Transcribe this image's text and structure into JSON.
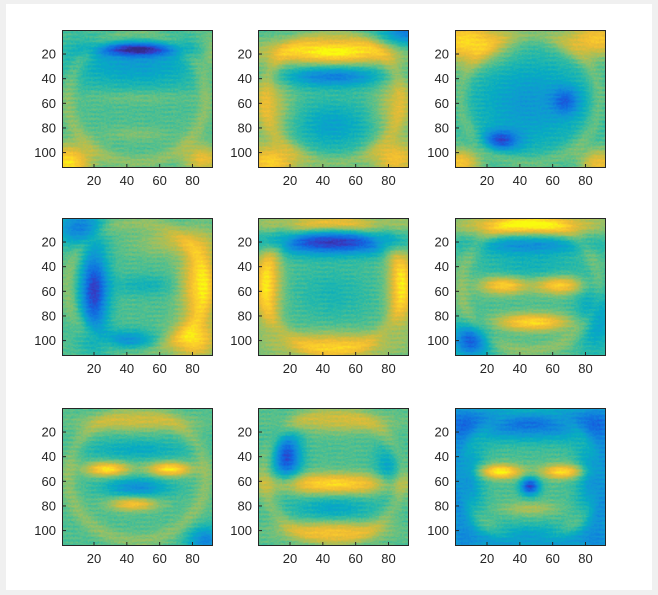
{
  "figure": {
    "background": "#f0f0f0",
    "canvas_color": "#ffffff"
  },
  "chart_data": [
    {
      "type": "heatmap",
      "panel": 1,
      "colormap": "parula",
      "xticks": [
        20,
        40,
        60,
        80
      ],
      "yticks": [
        20,
        40,
        60,
        80,
        100
      ],
      "xlim": [
        0.5,
        92.5
      ],
      "ylim": [
        0.5,
        112.5
      ],
      "y_direction": "reverse",
      "features": [
        {
          "x": 46,
          "y": 16,
          "sx": 18,
          "sy": 4,
          "v": -1.2
        },
        {
          "x": 46,
          "y": 28,
          "sx": 30,
          "sy": 14,
          "v": -0.55
        },
        {
          "x": 46,
          "y": 55,
          "sx": 22,
          "sy": 4,
          "v": 0.18
        },
        {
          "x": 46,
          "y": 85,
          "sx": 14,
          "sy": 4,
          "v": 0.2
        },
        {
          "x": 4,
          "y": 108,
          "sx": 10,
          "sy": 10,
          "v": 1.1
        },
        {
          "x": 86,
          "y": 105,
          "sx": 8,
          "sy": 8,
          "v": 0.75
        },
        {
          "x": 92,
          "y": 20,
          "sx": 6,
          "sy": 12,
          "v": 0.4
        }
      ]
    },
    {
      "type": "heatmap",
      "panel": 2,
      "colormap": "parula",
      "xticks": [
        20,
        40,
        60,
        80
      ],
      "yticks": [
        20,
        40,
        60,
        80,
        100
      ],
      "xlim": [
        0.5,
        92.5
      ],
      "ylim": [
        0.5,
        112.5
      ],
      "y_direction": "reverse",
      "features": [
        {
          "x": 46,
          "y": 18,
          "sx": 28,
          "sy": 7,
          "v": 1.25
        },
        {
          "x": 46,
          "y": 38,
          "sx": 22,
          "sy": 6,
          "v": -0.85
        },
        {
          "x": 8,
          "y": 62,
          "sx": 8,
          "sy": 18,
          "v": 0.55
        },
        {
          "x": 84,
          "y": 62,
          "sx": 8,
          "sy": 18,
          "v": 0.5
        },
        {
          "x": 46,
          "y": 78,
          "sx": 16,
          "sy": 14,
          "v": -0.5
        },
        {
          "x": 8,
          "y": 108,
          "sx": 12,
          "sy": 10,
          "v": 0.95
        },
        {
          "x": 84,
          "y": 105,
          "sx": 10,
          "sy": 10,
          "v": 0.8
        },
        {
          "x": 92,
          "y": 2,
          "sx": 12,
          "sy": 10,
          "v": -0.9
        }
      ]
    },
    {
      "type": "heatmap",
      "panel": 3,
      "colormap": "parula",
      "xticks": [
        20,
        40,
        60,
        80
      ],
      "yticks": [
        20,
        40,
        60,
        80,
        100
      ],
      "xlim": [
        0.5,
        92.5
      ],
      "ylim": [
        0.5,
        112.5
      ],
      "y_direction": "reverse",
      "features": [
        {
          "x": 8,
          "y": 10,
          "sx": 16,
          "sy": 12,
          "v": 1.1
        },
        {
          "x": 86,
          "y": 8,
          "sx": 14,
          "sy": 10,
          "v": 0.9
        },
        {
          "x": 46,
          "y": 60,
          "sx": 26,
          "sy": 28,
          "v": -0.6
        },
        {
          "x": 28,
          "y": 90,
          "sx": 8,
          "sy": 6,
          "v": -1.0
        },
        {
          "x": 68,
          "y": 58,
          "sx": 6,
          "sy": 8,
          "v": -0.7
        },
        {
          "x": 4,
          "y": 108,
          "sx": 8,
          "sy": 8,
          "v": 0.9
        },
        {
          "x": 88,
          "y": 108,
          "sx": 8,
          "sy": 8,
          "v": 0.8
        }
      ]
    },
    {
      "type": "heatmap",
      "panel": 4,
      "colormap": "parula",
      "xticks": [
        20,
        40,
        60,
        80
      ],
      "yticks": [
        20,
        40,
        60,
        80,
        100
      ],
      "xlim": [
        0.5,
        92.5
      ],
      "ylim": [
        0.5,
        112.5
      ],
      "y_direction": "reverse",
      "features": [
        {
          "x": 20,
          "y": 60,
          "sx": 6,
          "sy": 24,
          "v": -1.3
        },
        {
          "x": 84,
          "y": 55,
          "sx": 8,
          "sy": 24,
          "v": 1.0
        },
        {
          "x": 80,
          "y": 100,
          "sx": 10,
          "sy": 10,
          "v": 0.9
        },
        {
          "x": 40,
          "y": 100,
          "sx": 12,
          "sy": 6,
          "v": -0.7
        },
        {
          "x": 10,
          "y": 8,
          "sx": 10,
          "sy": 10,
          "v": -0.8
        },
        {
          "x": 70,
          "y": 20,
          "sx": 18,
          "sy": 8,
          "v": 0.4
        },
        {
          "x": 50,
          "y": 55,
          "sx": 14,
          "sy": 6,
          "v": -0.3
        }
      ]
    },
    {
      "type": "heatmap",
      "panel": 5,
      "colormap": "parula",
      "xticks": [
        20,
        40,
        60,
        80
      ],
      "yticks": [
        20,
        40,
        60,
        80,
        100
      ],
      "xlim": [
        0.5,
        92.5
      ],
      "ylim": [
        0.5,
        112.5
      ],
      "y_direction": "reverse",
      "features": [
        {
          "x": 46,
          "y": 20,
          "sx": 30,
          "sy": 7,
          "v": -1.35
        },
        {
          "x": 46,
          "y": 5,
          "sx": 32,
          "sy": 5,
          "v": 0.6
        },
        {
          "x": 6,
          "y": 55,
          "sx": 6,
          "sy": 24,
          "v": 0.9
        },
        {
          "x": 88,
          "y": 55,
          "sx": 6,
          "sy": 24,
          "v": 0.9
        },
        {
          "x": 46,
          "y": 104,
          "sx": 24,
          "sy": 8,
          "v": 0.8
        },
        {
          "x": 46,
          "y": 62,
          "sx": 16,
          "sy": 16,
          "v": -0.25
        }
      ]
    },
    {
      "type": "heatmap",
      "panel": 6,
      "colormap": "parula",
      "xticks": [
        20,
        40,
        60,
        80
      ],
      "yticks": [
        20,
        40,
        60,
        80,
        100
      ],
      "xlim": [
        0.5,
        92.5
      ],
      "ylim": [
        0.5,
        112.5
      ],
      "y_direction": "reverse",
      "features": [
        {
          "x": 46,
          "y": 6,
          "sx": 28,
          "sy": 6,
          "v": 1.1
        },
        {
          "x": 46,
          "y": 22,
          "sx": 26,
          "sy": 6,
          "v": -0.7
        },
        {
          "x": 30,
          "y": 55,
          "sx": 10,
          "sy": 5,
          "v": 1.0
        },
        {
          "x": 64,
          "y": 55,
          "sx": 10,
          "sy": 5,
          "v": 1.0
        },
        {
          "x": 48,
          "y": 85,
          "sx": 16,
          "sy": 5,
          "v": 1.05
        },
        {
          "x": 10,
          "y": 100,
          "sx": 8,
          "sy": 10,
          "v": -1.1
        },
        {
          "x": 86,
          "y": 80,
          "sx": 8,
          "sy": 20,
          "v": -0.6
        },
        {
          "x": 46,
          "y": 40,
          "sx": 22,
          "sy": 8,
          "v": -0.3
        }
      ]
    },
    {
      "type": "heatmap",
      "panel": 7,
      "colormap": "parula",
      "xticks": [
        20,
        40,
        60,
        80
      ],
      "yticks": [
        20,
        40,
        60,
        80,
        100
      ],
      "xlim": [
        0.5,
        92.5
      ],
      "ylim": [
        0.5,
        112.5
      ],
      "y_direction": "reverse",
      "features": [
        {
          "x": 28,
          "y": 50,
          "sx": 9,
          "sy": 4,
          "v": 1.15
        },
        {
          "x": 66,
          "y": 50,
          "sx": 9,
          "sy": 4,
          "v": 1.15
        },
        {
          "x": 44,
          "y": 78,
          "sx": 10,
          "sy": 4,
          "v": 0.9
        },
        {
          "x": 46,
          "y": 12,
          "sx": 22,
          "sy": 5,
          "v": 0.5
        },
        {
          "x": 46,
          "y": 34,
          "sx": 24,
          "sy": 6,
          "v": -0.4
        },
        {
          "x": 46,
          "y": 65,
          "sx": 14,
          "sy": 6,
          "v": -0.7
        },
        {
          "x": 88,
          "y": 108,
          "sx": 8,
          "sy": 8,
          "v": -0.8
        }
      ]
    },
    {
      "type": "heatmap",
      "panel": 8,
      "colormap": "parula",
      "xticks": [
        20,
        40,
        60,
        80
      ],
      "yticks": [
        20,
        40,
        60,
        80,
        100
      ],
      "xlim": [
        0.5,
        92.5
      ],
      "ylim": [
        0.5,
        112.5
      ],
      "y_direction": "reverse",
      "features": [
        {
          "x": 18,
          "y": 40,
          "sx": 6,
          "sy": 14,
          "v": -1.2
        },
        {
          "x": 46,
          "y": 62,
          "sx": 28,
          "sy": 6,
          "v": 1.05
        },
        {
          "x": 46,
          "y": 82,
          "sx": 18,
          "sy": 8,
          "v": -0.45
        },
        {
          "x": 46,
          "y": 100,
          "sx": 20,
          "sy": 6,
          "v": 0.8
        },
        {
          "x": 50,
          "y": 12,
          "sx": 22,
          "sy": 6,
          "v": 0.5
        },
        {
          "x": 80,
          "y": 50,
          "sx": 6,
          "sy": 14,
          "v": -0.5
        }
      ]
    },
    {
      "type": "heatmap",
      "panel": 9,
      "colormap": "parula",
      "xticks": [
        20,
        40,
        60,
        80
      ],
      "yticks": [
        20,
        40,
        60,
        80,
        100
      ],
      "xlim": [
        0.5,
        92.5
      ],
      "ylim": [
        0.5,
        112.5
      ],
      "y_direction": "reverse",
      "features": [
        {
          "x": 46,
          "y": 12,
          "sx": 40,
          "sy": 10,
          "v": -1.0
        },
        {
          "x": 4,
          "y": 60,
          "sx": 8,
          "sy": 40,
          "v": -0.9
        },
        {
          "x": 88,
          "y": 60,
          "sx": 8,
          "sy": 40,
          "v": -0.9
        },
        {
          "x": 46,
          "y": 108,
          "sx": 30,
          "sy": 8,
          "v": -0.8
        },
        {
          "x": 28,
          "y": 52,
          "sx": 9,
          "sy": 4,
          "v": 1.25
        },
        {
          "x": 66,
          "y": 52,
          "sx": 9,
          "sy": 4,
          "v": 1.1
        },
        {
          "x": 46,
          "y": 64,
          "sx": 4,
          "sy": 5,
          "v": -1.3
        },
        {
          "x": 46,
          "y": 82,
          "sx": 12,
          "sy": 4,
          "v": 0.4
        }
      ]
    }
  ]
}
